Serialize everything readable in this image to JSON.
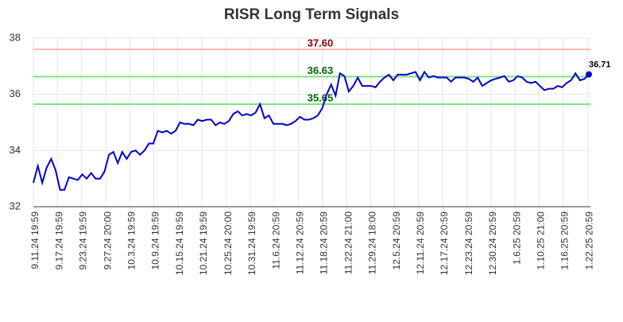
{
  "chart_data": {
    "type": "line",
    "title": "RISR Long Term Signals",
    "values": [
      32.85,
      33.45,
      32.85,
      33.4,
      33.7,
      33.3,
      32.6,
      32.6,
      33.05,
      33.0,
      32.95,
      33.15,
      33.0,
      33.2,
      33.0,
      33.0,
      33.25,
      33.85,
      33.95,
      33.55,
      33.95,
      33.7,
      33.95,
      34.0,
      33.85,
      34.0,
      34.25,
      34.25,
      34.7,
      34.65,
      34.7,
      34.6,
      34.7,
      35.0,
      34.95,
      34.95,
      34.9,
      35.1,
      35.05,
      35.1,
      35.1,
      34.9,
      35.0,
      34.95,
      35.05,
      35.3,
      35.4,
      35.25,
      35.3,
      35.25,
      35.35,
      35.65,
      35.15,
      35.25,
      34.95,
      34.95,
      34.95,
      34.9,
      34.95,
      35.05,
      35.2,
      35.1,
      35.1,
      35.15,
      35.25,
      35.5,
      36.0,
      36.35,
      35.95,
      36.75,
      36.65,
      36.1,
      36.3,
      36.6,
      36.3,
      36.3,
      36.3,
      36.25,
      36.45,
      36.6,
      36.7,
      36.5,
      36.7,
      36.7,
      36.7,
      36.75,
      36.8,
      36.5,
      36.8,
      36.6,
      36.65,
      36.6,
      36.6,
      36.6,
      36.45,
      36.6,
      36.6,
      36.6,
      36.55,
      36.45,
      36.6,
      36.3,
      36.4,
      36.5,
      36.55,
      36.6,
      36.65,
      36.45,
      36.5,
      36.65,
      36.6,
      36.45,
      36.4,
      36.45,
      36.3,
      36.15,
      36.2,
      36.2,
      36.3,
      36.25,
      36.4,
      36.5,
      36.75,
      36.5,
      36.55,
      36.71
    ],
    "color": "#0000cc",
    "xlim": [
      0,
      125
    ],
    "xticks": [
      {
        "value": 0,
        "label": "9.11.24 19:59"
      },
      {
        "value": 5.4,
        "label": "9.17.24 19:59"
      },
      {
        "value": 10.8,
        "label": "9.23.24 19:59"
      },
      {
        "value": 16.3,
        "label": "9.27.24 20:00"
      },
      {
        "value": 21.7,
        "label": "10.3.24 19:59"
      },
      {
        "value": 27.1,
        "label": "10.9.24 19:59"
      },
      {
        "value": 32.5,
        "label": "10.15.24 19:59"
      },
      {
        "value": 37.9,
        "label": "10.21.24 19:59"
      },
      {
        "value": 43.4,
        "label": "10.25.24 20:00"
      },
      {
        "value": 48.8,
        "label": "10.31.24 19:59"
      },
      {
        "value": 54.2,
        "label": "11.6.24 20:59"
      },
      {
        "value": 59.6,
        "label": "11.12.24 20:59"
      },
      {
        "value": 65,
        "label": "11.18.24 20:59"
      },
      {
        "value": 70.5,
        "label": "11.22.24 21:00"
      },
      {
        "value": 75.9,
        "label": "11.29.24 18:00"
      },
      {
        "value": 81.3,
        "label": "12.5.24 20:59"
      },
      {
        "value": 86.7,
        "label": "12.11.24 20:59"
      },
      {
        "value": 92.1,
        "label": "12.17.24 20:59"
      },
      {
        "value": 97.6,
        "label": "12.23.24 20:59"
      },
      {
        "value": 103,
        "label": "12.30.24 20:59"
      },
      {
        "value": 108.4,
        "label": "1.6.25 20:59"
      },
      {
        "value": 113.8,
        "label": "1.10.25 21:00"
      },
      {
        "value": 119.2,
        "label": "1.16.25 20:59"
      },
      {
        "value": 124.7,
        "label": "1.22.25 20:59"
      }
    ],
    "ylim": [
      32,
      38
    ],
    "yticks": [
      32,
      34,
      36,
      38
    ],
    "grid": true,
    "reference_lines": [
      {
        "value": 37.6,
        "label": "37.60",
        "color": "#ffb3b3",
        "text_color": "#8b0000"
      },
      {
        "value": 36.63,
        "label": "36.63",
        "color": "#80e080",
        "text_color": "#006400"
      },
      {
        "value": 35.65,
        "label": "35.65",
        "color": "#80e080",
        "text_color": "#006400"
      }
    ]
  }
}
